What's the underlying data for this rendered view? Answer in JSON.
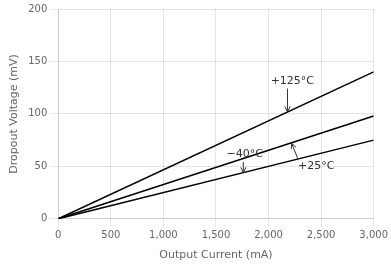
{
  "chart_data": {
    "type": "line",
    "xlabel": "Output Current (mA)",
    "ylabel": "Dropout Voltage (mV)",
    "x": [
      0,
      3000
    ],
    "series": [
      {
        "color": "#000000",
        "values": [
          0,
          140
        ]
      },
      {
        "color": "#000000",
        "values": [
          0,
          98
        ]
      },
      {
        "color": "#000000",
        "values": [
          0,
          75
        ]
      }
    ],
    "xlim": [
      0,
      3000
    ],
    "ylim": [
      0,
      200
    ],
    "xticks": [
      0,
      500,
      1000,
      1500,
      2000,
      2500,
      3000
    ],
    "yticks": [
      0,
      50,
      100,
      150,
      200
    ],
    "grid": true,
    "annotations": [
      {
        "text": "+125°C",
        "xy": [
          2180,
          102
        ],
        "xytext": [
          2020,
          126
        ]
      },
      {
        "text": "+25°C",
        "xy": [
          2220,
          72
        ],
        "xytext": [
          2280,
          55
        ]
      },
      {
        "text": "−40°C",
        "xy": [
          1760,
          44
        ],
        "xytext": [
          1600,
          56
        ]
      }
    ]
  }
}
